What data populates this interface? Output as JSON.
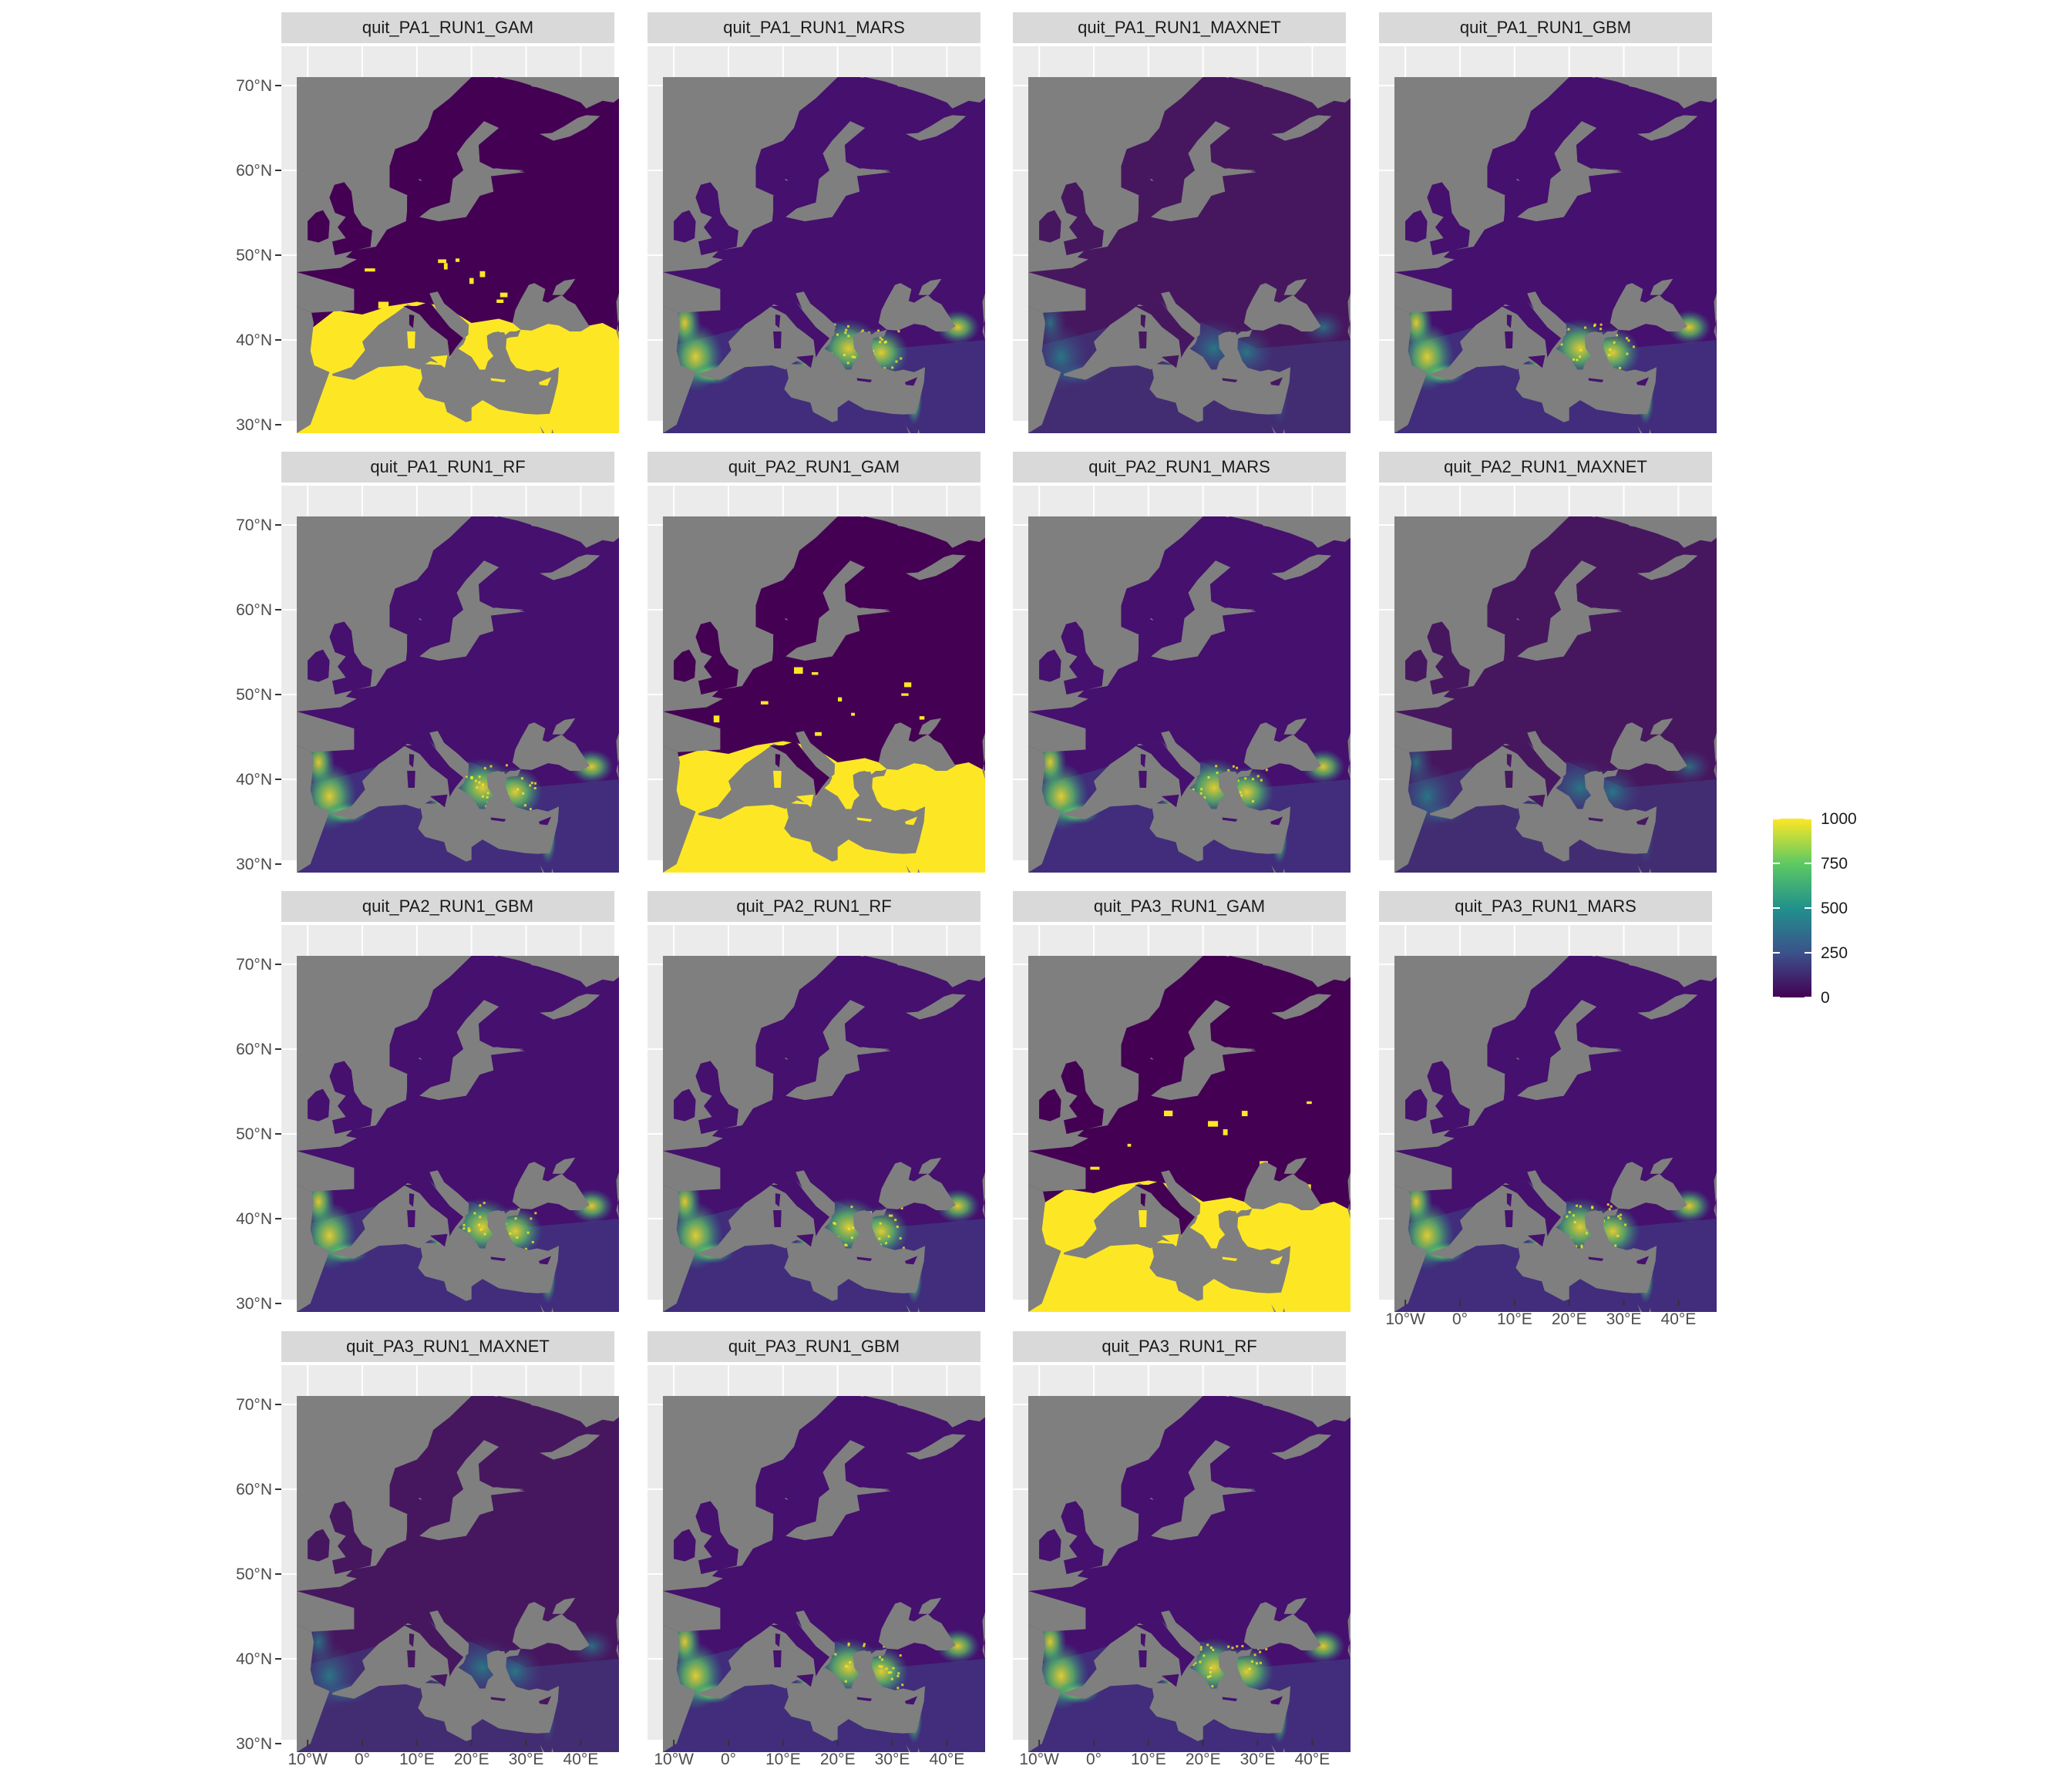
{
  "chart_data": {
    "type": "raster map (faceted)",
    "colorscale": "viridis",
    "na_color": "#7f7f7f",
    "y_ticks": [
      "30°N",
      "40°N",
      "50°N",
      "60°N",
      "70°N"
    ],
    "x_ticks": [
      "10°W",
      "0°",
      "10°E",
      "20°E",
      "30°E",
      "40°E"
    ],
    "lat_range": [
      29,
      71
    ],
    "lon_range": [
      -12,
      47
    ],
    "legend": {
      "ticks": [
        "1000",
        "750",
        "500",
        "250",
        "0"
      ],
      "range": [
        0,
        1000
      ],
      "placement": "right"
    },
    "panels": [
      {
        "name": "quit_PA1_RUN1_GAM",
        "pattern": "gam_high"
      },
      {
        "name": "quit_PA1_RUN1_MARS",
        "pattern": "medium"
      },
      {
        "name": "quit_PA1_RUN1_MAXNET",
        "pattern": "smooth"
      },
      {
        "name": "quit_PA1_RUN1_GBM",
        "pattern": "medium"
      },
      {
        "name": "quit_PA1_RUN1_RF",
        "pattern": "medium"
      },
      {
        "name": "quit_PA2_RUN1_GAM",
        "pattern": "gam_high"
      },
      {
        "name": "quit_PA2_RUN1_MARS",
        "pattern": "medium"
      },
      {
        "name": "quit_PA2_RUN1_MAXNET",
        "pattern": "smooth"
      },
      {
        "name": "quit_PA2_RUN1_GBM",
        "pattern": "medium"
      },
      {
        "name": "quit_PA2_RUN1_RF",
        "pattern": "medium"
      },
      {
        "name": "quit_PA3_RUN1_GAM",
        "pattern": "gam_high"
      },
      {
        "name": "quit_PA3_RUN1_MARS",
        "pattern": "medium"
      },
      {
        "name": "quit_PA3_RUN1_MAXNET",
        "pattern": "smooth"
      },
      {
        "name": "quit_PA3_RUN1_GBM",
        "pattern": "medium"
      },
      {
        "name": "quit_PA3_RUN1_RF",
        "pattern": "medium"
      }
    ]
  }
}
